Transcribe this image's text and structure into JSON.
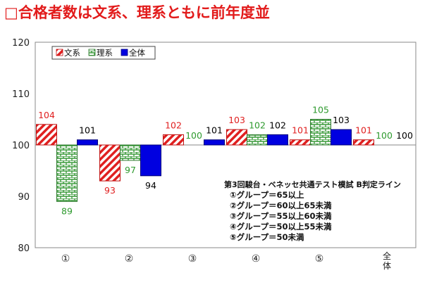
{
  "headline": "□合格者数は文系、理系ともに前年度並",
  "chart_data": {
    "type": "bar",
    "categories": [
      "①",
      "②",
      "③",
      "④",
      "⑤",
      "全体"
    ],
    "series": [
      {
        "name": "文系",
        "values": [
          104,
          93,
          102,
          103,
          101,
          101
        ],
        "color": "#e02020",
        "label_color": "#e02020"
      },
      {
        "name": "理系",
        "values": [
          89,
          97,
          100,
          102,
          105,
          100
        ],
        "color": "#3a9a3a",
        "label_color": "#2e9a2e"
      },
      {
        "name": "全体",
        "values": [
          101,
          94,
          101,
          102,
          103,
          100
        ],
        "color": "#0000e0",
        "label_color": "#000000"
      }
    ],
    "baseline": 100,
    "ylim": [
      80,
      120
    ],
    "yticks": [
      80,
      90,
      100,
      110,
      120
    ],
    "legend_position": "top-left",
    "annotation_lines": [
      "第3回駿台・ベネッセ共通テスト模試 B判定ライン",
      "①グループ＝65以上",
      "②グループ＝60以上65未満",
      "③グループ＝55以上60未満",
      "④グループ＝50以上55未満",
      "⑤グループ＝50未満"
    ]
  }
}
